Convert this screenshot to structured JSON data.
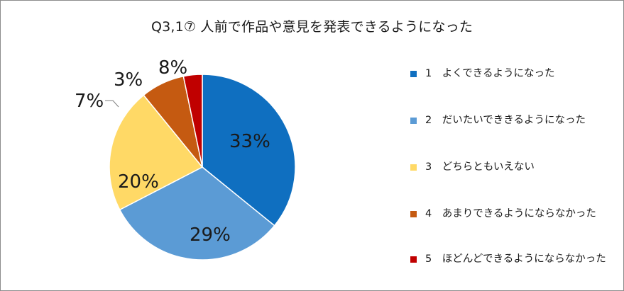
{
  "chart_data": {
    "type": "pie",
    "title": "Q3,1⑦ 人前で作品や意見を発表できるようになった",
    "categories": [
      "1　よくできるようになった",
      "2　だいたいでききるようになった",
      "3　どちらともいえない",
      "4　あまりできるようにならなかった",
      "5　ほどんどできるようにならなかった"
    ],
    "values": [
      33,
      29,
      20,
      7,
      3
    ],
    "labels": [
      "33%",
      "29%",
      "20%",
      "7%",
      "3%"
    ],
    "colors": [
      "#0f6fc0",
      "#5b9bd5",
      "#ffd966",
      "#c55a11",
      "#c00000"
    ],
    "extra_label": "8%",
    "legend_position": "right"
  }
}
